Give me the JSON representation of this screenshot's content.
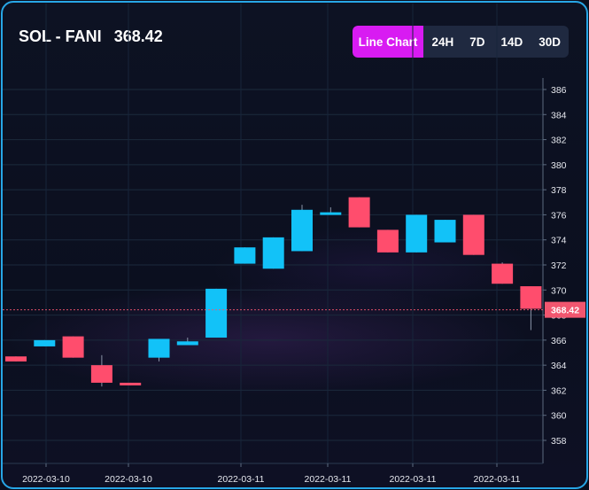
{
  "header": {
    "pair": "SOL - FANI",
    "price": "368.42"
  },
  "ranges": [
    "Line Chart",
    "24H",
    "7D",
    "14D",
    "30D"
  ],
  "active_range": "Line Chart",
  "colors": {
    "up": "#12c2f8",
    "down": "#ff4d6d",
    "accent": "#d81bf2",
    "border": "#27a6e6",
    "price_tag": "#f2566f"
  },
  "chart_data": {
    "type": "candlestick",
    "title": "",
    "xlabel": "",
    "ylabel": "",
    "ylim": [
      356,
      387
    ],
    "yticks": [
      358,
      360,
      362,
      364,
      366,
      368,
      370,
      372,
      374,
      376,
      378,
      380,
      382,
      384,
      386
    ],
    "x_tick_labels": [
      "2022-03-10",
      "2022-03-10",
      "2022-03-11",
      "2022-03-11",
      "2022-03-11",
      "2022-03-11"
    ],
    "current_price": 368.42,
    "current_price_label": "368.42",
    "grid": true,
    "candles": [
      {
        "open": 364.7,
        "close": 364.3,
        "high": 364.7,
        "low": 364.3
      },
      {
        "open": 365.5,
        "close": 366.0,
        "high": 366.0,
        "low": 365.5
      },
      {
        "open": 366.3,
        "close": 364.6,
        "high": 366.3,
        "low": 364.6
      },
      {
        "open": 364.0,
        "close": 362.6,
        "high": 364.8,
        "low": 362.3
      },
      {
        "open": 362.6,
        "close": 362.4,
        "high": 362.6,
        "low": 362.4
      },
      {
        "open": 364.6,
        "close": 366.1,
        "high": 366.1,
        "low": 364.3
      },
      {
        "open": 365.6,
        "close": 365.9,
        "high": 366.2,
        "low": 365.6
      },
      {
        "open": 366.2,
        "close": 370.1,
        "high": 370.1,
        "low": 366.2
      },
      {
        "open": 372.1,
        "close": 373.4,
        "high": 373.4,
        "low": 372.1
      },
      {
        "open": 371.7,
        "close": 374.2,
        "high": 374.2,
        "low": 371.7
      },
      {
        "open": 373.1,
        "close": 376.4,
        "high": 376.8,
        "low": 373.1
      },
      {
        "open": 376.0,
        "close": 376.2,
        "high": 376.6,
        "low": 376.0
      },
      {
        "open": 377.4,
        "close": 375.0,
        "high": 377.4,
        "low": 375.0
      },
      {
        "open": 374.8,
        "close": 373.0,
        "high": 374.8,
        "low": 373.0
      },
      {
        "open": 373.0,
        "close": 376.0,
        "high": 376.0,
        "low": 373.0
      },
      {
        "open": 373.8,
        "close": 375.6,
        "high": 375.6,
        "low": 373.8
      },
      {
        "open": 376.0,
        "close": 372.8,
        "high": 376.0,
        "low": 372.8
      },
      {
        "open": 372.1,
        "close": 370.5,
        "high": 372.2,
        "low": 370.5
      },
      {
        "open": 370.3,
        "close": 368.5,
        "high": 370.3,
        "low": 366.8
      }
    ]
  }
}
